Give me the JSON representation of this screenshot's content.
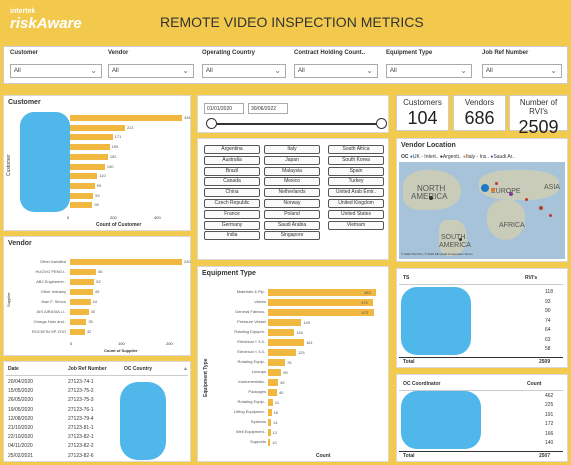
{
  "header": {
    "logo_top": "intertek",
    "logo_main": "riskAware",
    "title": "REMOTE VIDEO INSPECTION METRICS"
  },
  "filters": [
    {
      "label": "Customer",
      "value": "All"
    },
    {
      "label": "Vendor",
      "value": "All"
    },
    {
      "label": "Operating Country",
      "value": "All"
    },
    {
      "label": "Contract Holding Count..",
      "value": "All"
    },
    {
      "label": "Equipment Type",
      "value": "All"
    },
    {
      "label": "Job Ref Number",
      "value": "All"
    }
  ],
  "customer_panel": {
    "title": "Customer",
    "ylabel": "Customer",
    "xlabel": "Count of Customer",
    "ticks": [
      "0",
      "200",
      "400"
    ]
  },
  "date_slicer": {
    "start": "01/01/2020",
    "end": "30/06/2022"
  },
  "kpis": [
    {
      "label": "Customers",
      "value": "104"
    },
    {
      "label": "Vendors",
      "value": "686"
    },
    {
      "label": "Number of RVI's",
      "value": "2509"
    }
  ],
  "countries": [
    "Argentina",
    "Italy",
    "South Africa",
    "Australia",
    "Japan",
    "South Korea",
    "Brazil",
    "Malaysia",
    "Spain",
    "Canada",
    "Mexico",
    "Turkey",
    "China",
    "Netherlands",
    "United Arab Emir..",
    "Czech Republic",
    "Norway",
    "United Kingdom",
    "France",
    "Poland",
    "United States",
    "Germany",
    "Saudi Arabia",
    "Vietnam",
    "India",
    "Singapore"
  ],
  "vendor_location": {
    "title": "Vendor Location",
    "legend_label": "OC",
    "legend": [
      "UK - Intert..",
      "Argenti..",
      "Italy - Ins..",
      "Saudi Ar.."
    ],
    "map_labels": [
      "NORTH",
      "AMERICA",
      "EUROPE",
      "ASIA",
      "AFRICA",
      "SOUTH",
      "AMERICA"
    ],
    "credit": "© 2022 TomTom, © 2022 Microsoft Corporation  Terms"
  },
  "vendor_panel": {
    "title": "Vendor",
    "ylabel": "Supplier",
    "xlabel": "Count of Supplier",
    "ticks": [
      "0",
      "100",
      "200"
    ]
  },
  "equipment_panel": {
    "title": "Equipment Type",
    "ylabel": "Equipment Type",
    "xlabel": "Count"
  },
  "ts_table": {
    "col1": "TS",
    "col2": "RVI's",
    "total_label": "Total",
    "total_value": "2509"
  },
  "oc_table": {
    "col1": "OC Coordinator",
    "col2": "Count",
    "total_label": "Total",
    "total_value": "2507"
  },
  "jobs_table": {
    "headers": [
      "Date",
      "Job Ref Number",
      "OC Country"
    ],
    "rows": [
      [
        "20/04/2020",
        "27123-74-1"
      ],
      [
        "15/05/2020",
        "27123-75-2"
      ],
      [
        "26/05/2020",
        "27123-75-3"
      ],
      [
        "19/05/2020",
        "27123-76-1"
      ],
      [
        "12/08/2020",
        "27123-79-4"
      ],
      [
        "21/10/2020",
        "27123-81-1"
      ],
      [
        "22/10/2020",
        "27123-82-1"
      ],
      [
        "04/11/2020",
        "27123-82-2"
      ],
      [
        "25/02/2021",
        "27123-82-6"
      ]
    ]
  },
  "chart_data": [
    {
      "type": "bar",
      "title": "Customer",
      "xlabel": "Count of Customer",
      "ylabel": "Customer",
      "xlim": [
        0,
        450
      ],
      "values": [
        451,
        221,
        171,
        159,
        152,
        140,
        110,
        99,
        93,
        90
      ]
    },
    {
      "type": "bar",
      "title": "Vendor",
      "xlabel": "Count of Supplier",
      "ylabel": "Supplier",
      "xlim": [
        0,
        240
      ],
      "categories": [
        "Other Installed",
        "HUOVO PENGI..",
        "ABJ Engineerin..",
        "Other Industry",
        "Jean F. Simon",
        "AIS AIRASIA Li..",
        "Omega Halo and..",
        "ROCKFIN SP ZOO"
      ],
      "values": [
        240,
        56,
        52,
        49,
        44,
        40,
        35,
        32
      ]
    },
    {
      "type": "bar",
      "title": "Equipment Type",
      "xlabel": "Count",
      "ylabel": "Equipment Type",
      "xlim": [
        0,
        483
      ],
      "categories": [
        "Materials & Pip..",
        "Valves",
        "General Fabrica..",
        "Pressure Vessel",
        "Rotating Equipm..",
        "Electrical + 3.3..",
        "Electrical < 3.3..",
        "Rotating Equip..",
        "Lineups",
        "Instrumentatio..",
        "Packages",
        "Rotating Equip..",
        "Lifting Equipmen..",
        "Systems",
        "Well Equipment..",
        "Supports"
      ],
      "values": [
        483,
        470,
        472,
        149,
        118,
        161,
        125,
        76,
        59,
        45,
        40,
        21,
        16,
        14,
        12,
        10
      ]
    },
    {
      "type": "table",
      "title": "TS",
      "columns": [
        "TS",
        "RVI's"
      ],
      "values": [
        118,
        93,
        90,
        74,
        64,
        63,
        58
      ],
      "total": 2509
    },
    {
      "type": "table",
      "title": "OC Coordinator",
      "columns": [
        "OC Coordinator",
        "Count"
      ],
      "values": [
        462,
        225,
        191,
        172,
        166,
        140
      ],
      "total": 2507
    }
  ]
}
